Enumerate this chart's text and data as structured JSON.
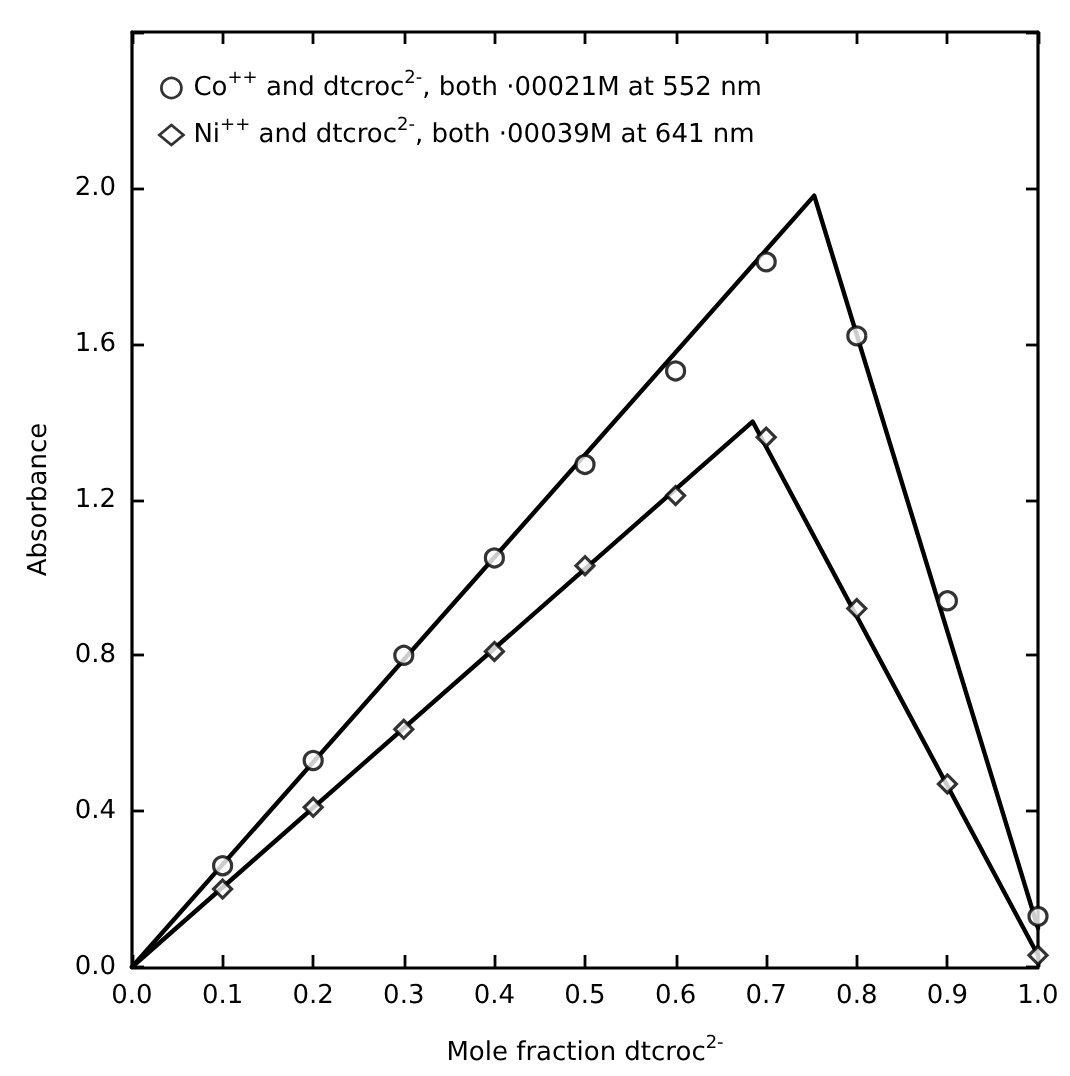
{
  "chart_data": {
    "type": "scatter",
    "xlabel": "Mole fraction dtcroc$^{2-}$",
    "ylabel": "Absorbance",
    "xlim": [
      0,
      1
    ],
    "xticks": [
      {
        "value": 0,
        "label": "0.0"
      },
      0.1,
      0.2,
      0.3,
      0.4,
      0.5,
      0.6,
      0.7,
      0.8,
      0.9,
      {
        "value": 1,
        "label": "1.0"
      }
    ],
    "ylim": [
      0,
      2.4
    ],
    "yticks": [
      {
        "value": 0,
        "label": "0.0"
      },
      0.4,
      0.8,
      1.2,
      1.6,
      {
        "value": 2,
        "label": "2.0"
      },
      {
        "value": 2.4,
        "label": null
      }
    ],
    "x": [
      0.1,
      0.2,
      0.3,
      0.4,
      0.5,
      0.6,
      0.7,
      0.8,
      0.9,
      1.0
    ],
    "grid": false,
    "legend": "top left",
    "series": [
      {
        "name": "Co$^{++}$ and dtcroc$^{2-}$, both ·00021M at 552 nm",
        "color": "#000000",
        "marker": "circle",
        "values": [
          0.26,
          0.53,
          0.8,
          1.05,
          1.29,
          1.53,
          1.81,
          1.62,
          0.94,
          0.13
        ]
      },
      {
        "name": "Ni$^{++}$ and dtcroc$^{2-}$, both ·00039M at 641 nm",
        "color": "#000000",
        "marker": "diamond",
        "values": [
          0.2,
          0.41,
          0.61,
          0.81,
          1.03,
          1.21,
          1.36,
          0.92,
          0.47,
          0.03
        ]
      },
      {
        "type": "line",
        "color": "#000000",
        "marker": "none",
        "x": [
          0,
          0.753,
          1.0
        ],
        "values": [
          0,
          1.98,
          0.1
        ]
      },
      {
        "type": "line",
        "color": "#000000",
        "marker": "none",
        "x": [
          0,
          0.685,
          1.0
        ],
        "values": [
          0,
          1.4,
          0.03
        ]
      }
    ]
  }
}
